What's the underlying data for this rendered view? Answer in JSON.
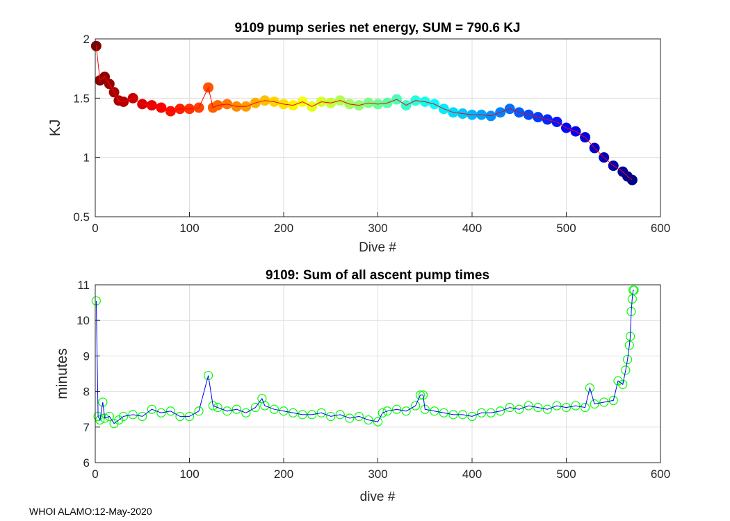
{
  "footer": "WHOI ALAMO:12-May-2020",
  "chart_data": [
    {
      "type": "scatter",
      "title": "9109 pump series net energy, SUM = 790.6 KJ",
      "xlabel": "Dive #",
      "ylabel": "KJ",
      "xlim": [
        0,
        600
      ],
      "ylim": [
        0.5,
        2
      ],
      "xticks": [
        0,
        100,
        200,
        300,
        400,
        500,
        600
      ],
      "yticks": [
        0.5,
        1,
        1.5,
        2
      ],
      "xtick_labels": [
        "0",
        "100",
        "200",
        "300",
        "400",
        "500",
        "600"
      ],
      "ytick_labels": [
        "0.5",
        "1",
        "1.5",
        "2"
      ],
      "grid": true,
      "marker": "filled circle, colored by dive number (jet colormap, reversed)",
      "line_color": "#ff0000",
      "x": [
        1,
        5,
        10,
        15,
        20,
        25,
        30,
        40,
        50,
        60,
        70,
        80,
        90,
        100,
        110,
        120,
        125,
        130,
        140,
        150,
        160,
        170,
        180,
        190,
        200,
        210,
        220,
        230,
        240,
        250,
        260,
        270,
        280,
        290,
        300,
        310,
        320,
        330,
        340,
        350,
        360,
        370,
        380,
        390,
        400,
        410,
        420,
        430,
        440,
        450,
        460,
        470,
        480,
        490,
        500,
        510,
        520,
        530,
        540,
        550,
        560,
        565,
        570
      ],
      "y": [
        1.94,
        1.65,
        1.68,
        1.62,
        1.55,
        1.48,
        1.47,
        1.5,
        1.45,
        1.44,
        1.42,
        1.39,
        1.41,
        1.41,
        1.42,
        1.59,
        1.42,
        1.44,
        1.45,
        1.43,
        1.43,
        1.46,
        1.48,
        1.47,
        1.45,
        1.44,
        1.47,
        1.43,
        1.47,
        1.46,
        1.48,
        1.45,
        1.44,
        1.46,
        1.45,
        1.46,
        1.49,
        1.44,
        1.48,
        1.47,
        1.45,
        1.41,
        1.38,
        1.37,
        1.36,
        1.36,
        1.35,
        1.38,
        1.41,
        1.38,
        1.36,
        1.34,
        1.32,
        1.3,
        1.25,
        1.22,
        1.17,
        1.08,
        1.0,
        0.93,
        0.88,
        0.84,
        0.81
      ]
    },
    {
      "type": "scatter",
      "title": "9109: Sum of all ascent pump times",
      "xlabel": "dive #",
      "ylabel": "minutes",
      "xlim": [
        0,
        600
      ],
      "ylim": [
        6,
        11
      ],
      "xticks": [
        0,
        100,
        200,
        300,
        400,
        500,
        600
      ],
      "yticks": [
        6,
        7,
        8,
        9,
        10,
        11
      ],
      "xtick_labels": [
        "0",
        "100",
        "200",
        "300",
        "400",
        "500",
        "600"
      ],
      "ytick_labels": [
        "6",
        "7",
        "8",
        "9",
        "10",
        "11"
      ],
      "grid": true,
      "marker_color": "#00ff00",
      "line_color": "#0000ff",
      "x": [
        1,
        3,
        5,
        8,
        10,
        15,
        20,
        25,
        30,
        40,
        50,
        60,
        70,
        80,
        90,
        100,
        110,
        120,
        125,
        130,
        140,
        150,
        160,
        170,
        177,
        180,
        190,
        200,
        210,
        220,
        230,
        240,
        250,
        260,
        270,
        280,
        290,
        300,
        305,
        310,
        320,
        330,
        340,
        345,
        348,
        350,
        360,
        370,
        380,
        390,
        400,
        410,
        420,
        430,
        440,
        450,
        460,
        470,
        480,
        490,
        500,
        510,
        520,
        525,
        530,
        540,
        550,
        555,
        560,
        563,
        565,
        567,
        568,
        569,
        570,
        571,
        572
      ],
      "y": [
        10.55,
        7.3,
        7.2,
        7.7,
        7.25,
        7.3,
        7.1,
        7.2,
        7.3,
        7.35,
        7.3,
        7.5,
        7.4,
        7.45,
        7.3,
        7.3,
        7.45,
        8.45,
        7.6,
        7.55,
        7.45,
        7.5,
        7.4,
        7.55,
        7.8,
        7.6,
        7.5,
        7.45,
        7.4,
        7.35,
        7.35,
        7.4,
        7.3,
        7.35,
        7.25,
        7.3,
        7.2,
        7.15,
        7.4,
        7.45,
        7.5,
        7.45,
        7.6,
        7.9,
        7.9,
        7.5,
        7.45,
        7.4,
        7.35,
        7.35,
        7.3,
        7.4,
        7.4,
        7.45,
        7.55,
        7.5,
        7.6,
        7.55,
        7.5,
        7.6,
        7.55,
        7.6,
        7.55,
        8.1,
        7.65,
        7.7,
        7.75,
        8.3,
        8.2,
        8.6,
        8.9,
        9.3,
        9.55,
        10.25,
        10.6,
        10.85,
        10.85
      ]
    }
  ]
}
